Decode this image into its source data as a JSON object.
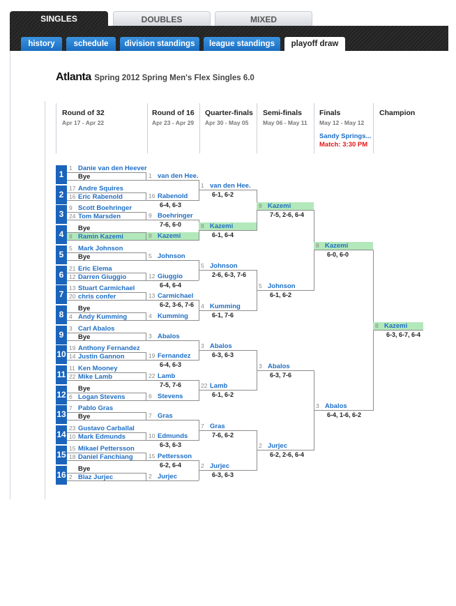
{
  "major_tabs": [
    {
      "label": "SINGLES",
      "active": true
    },
    {
      "label": "DOUBLES",
      "active": false
    },
    {
      "label": "MIXED",
      "active": false
    }
  ],
  "sub_tabs": [
    {
      "label": "history",
      "active": false
    },
    {
      "label": "schedule",
      "active": false
    },
    {
      "label": "division standings",
      "active": false
    },
    {
      "label": "league standings",
      "active": false
    },
    {
      "label": "playoff draw",
      "active": true
    }
  ],
  "title": {
    "city": "Atlanta",
    "subtitle": "Spring 2012 Spring Men's Flex Singles 6.0"
  },
  "colors": {
    "accent": "#1a64bb",
    "link": "#1f6fc5",
    "highlight": "#b3e8bb",
    "alert": "#e51414"
  },
  "headers": [
    {
      "title": "Round of 32",
      "dates": "Apr 17 - Apr 22"
    },
    {
      "title": "Round of 16",
      "dates": "Apr 23 - Apr 29"
    },
    {
      "title": "Quarter-finals",
      "dates": "Apr 30 - May 05"
    },
    {
      "title": "Semi-finals",
      "dates": "May 06 - May 11"
    },
    {
      "title": "Finals",
      "dates": "May 12 - May 12",
      "location": "Sandy Springs...",
      "match_time": "Match: 3:30 PM"
    },
    {
      "title": "Champion"
    }
  ],
  "round32": [
    {
      "num": "1",
      "top": {
        "seed": "1",
        "name": "Danie van den Heever"
      },
      "bottom": {
        "seed": "",
        "name": "Bye"
      }
    },
    {
      "num": "2",
      "top": {
        "seed": "17",
        "name": "Andre Squires"
      },
      "bottom": {
        "seed": "16",
        "name": "Eric Rabenold"
      }
    },
    {
      "num": "3",
      "top": {
        "seed": "9",
        "name": "Scott Boehringer"
      },
      "bottom": {
        "seed": "24",
        "name": "Tom Marsden"
      }
    },
    {
      "num": "4",
      "top": {
        "seed": "",
        "name": "Bye"
      },
      "bottom": {
        "seed": "8",
        "name": "Ramin Kazemi",
        "highlight": true
      }
    },
    {
      "num": "5",
      "top": {
        "seed": "5",
        "name": "Mark Johnson"
      },
      "bottom": {
        "seed": "",
        "name": "Bye"
      }
    },
    {
      "num": "6",
      "top": {
        "seed": "21",
        "name": "Eric Elema"
      },
      "bottom": {
        "seed": "12",
        "name": "Darren Giuggio"
      }
    },
    {
      "num": "7",
      "top": {
        "seed": "13",
        "name": "Stuart Carmichael"
      },
      "bottom": {
        "seed": "20",
        "name": "chris confer"
      }
    },
    {
      "num": "8",
      "top": {
        "seed": "",
        "name": "Bye"
      },
      "bottom": {
        "seed": "4",
        "name": "Andy Kumming"
      }
    },
    {
      "num": "9",
      "top": {
        "seed": "3",
        "name": "Carl Abalos"
      },
      "bottom": {
        "seed": "",
        "name": "Bye"
      }
    },
    {
      "num": "10",
      "top": {
        "seed": "19",
        "name": "Anthony Fernandez"
      },
      "bottom": {
        "seed": "14",
        "name": "Justin Gannon"
      }
    },
    {
      "num": "11",
      "top": {
        "seed": "11",
        "name": "Ken Mooney"
      },
      "bottom": {
        "seed": "22",
        "name": "Mike Lamb"
      }
    },
    {
      "num": "12",
      "top": {
        "seed": "",
        "name": "Bye"
      },
      "bottom": {
        "seed": "6",
        "name": "Logan Stevens"
      }
    },
    {
      "num": "13",
      "top": {
        "seed": "7",
        "name": "Pablo Gras"
      },
      "bottom": {
        "seed": "",
        "name": "Bye"
      }
    },
    {
      "num": "14",
      "top": {
        "seed": "23",
        "name": "Gustavo Carballal"
      },
      "bottom": {
        "seed": "10",
        "name": "Mark Edmunds"
      }
    },
    {
      "num": "15",
      "top": {
        "seed": "15",
        "name": "Mikael Pettersson"
      },
      "bottom": {
        "seed": "18",
        "name": "Daniel Fanchiang"
      }
    },
    {
      "num": "16",
      "top": {
        "seed": "",
        "name": "Bye"
      },
      "bottom": {
        "seed": "2",
        "name": "Blaz Jurjec"
      }
    }
  ],
  "rounds": [
    [
      {
        "seed": "1",
        "name": "van den Hee.",
        "score": ""
      },
      {
        "seed": "16",
        "name": "Rabenold",
        "score": "6-4, 6-3"
      },
      {
        "seed": "9",
        "name": "Boehringer",
        "score": "7-6, 6-0"
      },
      {
        "seed": "8",
        "name": "Kazemi",
        "score": "",
        "highlight": true
      },
      {
        "seed": "5",
        "name": "Johnson",
        "score": ""
      },
      {
        "seed": "12",
        "name": "Giuggio",
        "score": "6-4, 6-4"
      },
      {
        "seed": "13",
        "name": "Carmichael",
        "score": "6-2, 3-6, 7-6"
      },
      {
        "seed": "4",
        "name": "Kumming",
        "score": ""
      },
      {
        "seed": "3",
        "name": "Abalos",
        "score": ""
      },
      {
        "seed": "19",
        "name": "Fernandez",
        "score": "6-4, 6-3"
      },
      {
        "seed": "22",
        "name": "Lamb",
        "score": "7-5, 7-6"
      },
      {
        "seed": "6",
        "name": "Stevens",
        "score": ""
      },
      {
        "seed": "7",
        "name": "Gras",
        "score": ""
      },
      {
        "seed": "10",
        "name": "Edmunds",
        "score": "6-3, 6-3"
      },
      {
        "seed": "15",
        "name": "Pettersson",
        "score": "6-2, 6-4"
      },
      {
        "seed": "2",
        "name": "Jurjec",
        "score": ""
      }
    ],
    [
      {
        "seed": "1",
        "name": "van den Hee.",
        "score": "6-1, 6-2"
      },
      {
        "seed": "8",
        "name": "Kazemi",
        "score": "6-1, 6-4",
        "highlight": true
      },
      {
        "seed": "5",
        "name": "Johnson",
        "score": "2-6, 6-3, 7-6"
      },
      {
        "seed": "4",
        "name": "Kumming",
        "score": "6-1, 7-6"
      },
      {
        "seed": "3",
        "name": "Abalos",
        "score": "6-3, 6-3"
      },
      {
        "seed": "22",
        "name": "Lamb",
        "score": "6-1, 6-2"
      },
      {
        "seed": "7",
        "name": "Gras",
        "score": "7-6, 6-2"
      },
      {
        "seed": "2",
        "name": "Jurjec",
        "score": "6-3, 6-3"
      }
    ],
    [
      {
        "seed": "8",
        "name": "Kazemi",
        "score": "7-5, 2-6, 6-4",
        "highlight": true
      },
      {
        "seed": "5",
        "name": "Johnson",
        "score": "6-1, 6-2"
      },
      {
        "seed": "3",
        "name": "Abalos",
        "score": "6-3, 7-6"
      },
      {
        "seed": "2",
        "name": "Jurjec",
        "score": "6-2, 2-6, 6-4"
      }
    ],
    [
      {
        "seed": "8",
        "name": "Kazemi",
        "score": "6-0, 6-0",
        "highlight": true
      },
      {
        "seed": "3",
        "name": "Abalos",
        "score": "6-4, 1-6, 6-2"
      }
    ],
    [
      {
        "seed": "8",
        "name": "Kazemi",
        "score": "6-3, 6-7, 6-4",
        "highlight": true
      }
    ]
  ]
}
